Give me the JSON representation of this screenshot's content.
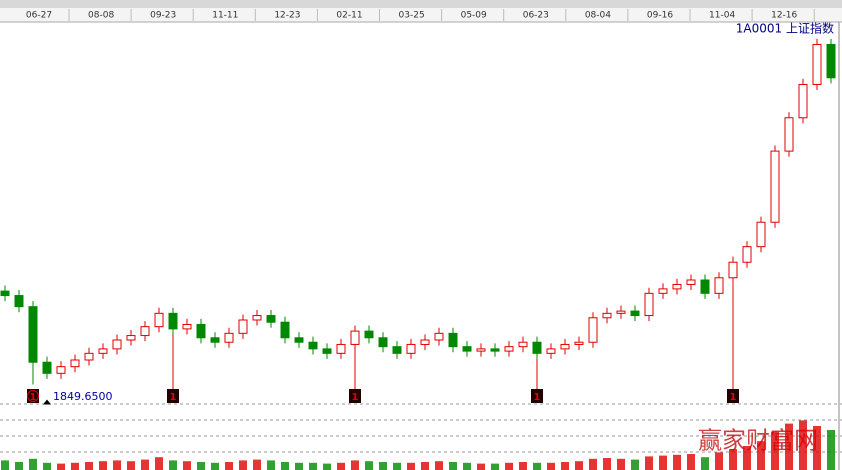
{
  "chart_data": {
    "type": "candlestick",
    "title": "1A0001 上证指数",
    "date_labels": [
      "06-27",
      "08-08",
      "09-23",
      "11-11",
      "12-23",
      "02-11",
      "03-25",
      "05-09",
      "06-23",
      "08-04",
      "09-16",
      "11-04",
      "12-16"
    ],
    "open": [
      2270,
      2250,
      2200,
      1950,
      1900,
      1930,
      1960,
      1990,
      2010,
      2050,
      2070,
      2110,
      2170,
      2100,
      2120,
      2060,
      2040,
      2080,
      2140,
      2160,
      2130,
      2060,
      2040,
      2010,
      1990,
      2030,
      2090,
      2060,
      2020,
      1990,
      2030,
      2050,
      2080,
      2020,
      2000,
      2010,
      2000,
      2020,
      2040,
      1990,
      2010,
      2030,
      2040,
      2150,
      2170,
      2180,
      2160,
      2260,
      2280,
      2300,
      2320,
      2260,
      2330,
      2400,
      2470,
      2580,
      2900,
      3050,
      3200,
      3380
    ],
    "close": [
      2250,
      2200,
      1950,
      1900,
      1930,
      1960,
      1990,
      2010,
      2050,
      2070,
      2110,
      2170,
      2100,
      2120,
      2060,
      2040,
      2080,
      2140,
      2160,
      2130,
      2060,
      2040,
      2010,
      1990,
      2030,
      2090,
      2060,
      2020,
      1990,
      2030,
      2050,
      2080,
      2020,
      2000,
      2010,
      2000,
      2020,
      2040,
      1990,
      2010,
      2030,
      2040,
      2150,
      2170,
      2180,
      2160,
      2260,
      2280,
      2300,
      2320,
      2260,
      2330,
      2400,
      2470,
      2580,
      2900,
      3050,
      3200,
      3380,
      3230
    ],
    "high": [
      2295,
      2275,
      2225,
      1975,
      1955,
      1985,
      2015,
      2035,
      2075,
      2095,
      2135,
      2195,
      2195,
      2145,
      2145,
      2085,
      2105,
      2165,
      2185,
      2185,
      2155,
      2085,
      2065,
      2035,
      2055,
      2115,
      2115,
      2085,
      2045,
      2055,
      2075,
      2105,
      2105,
      2045,
      2035,
      2035,
      2045,
      2065,
      2065,
      2035,
      2055,
      2065,
      2175,
      2195,
      2205,
      2205,
      2285,
      2305,
      2325,
      2345,
      2345,
      2355,
      2425,
      2495,
      2605,
      2925,
      3075,
      3225,
      3405,
      3405
    ],
    "low": [
      2225,
      2175,
      1849.65,
      1875,
      1875,
      1905,
      1935,
      1965,
      1985,
      2025,
      2045,
      2085,
      2075,
      2075,
      2035,
      2015,
      2015,
      2055,
      2115,
      2105,
      2035,
      2015,
      1985,
      1965,
      1965,
      2005,
      2035,
      1995,
      1965,
      1965,
      2005,
      2025,
      1995,
      1975,
      1975,
      1975,
      1975,
      1995,
      1965,
      1965,
      1985,
      2005,
      2015,
      2125,
      2145,
      2135,
      2135,
      2235,
      2255,
      2275,
      2235,
      2235,
      2305,
      2375,
      2445,
      2555,
      2875,
      3025,
      3175,
      3205
    ],
    "volume": [
      12,
      10,
      14,
      9,
      8,
      9,
      10,
      11,
      12,
      11,
      13,
      16,
      12,
      11,
      10,
      9,
      10,
      12,
      13,
      12,
      10,
      9,
      9,
      8,
      9,
      12,
      11,
      10,
      9,
      9,
      10,
      11,
      10,
      9,
      8,
      8,
      9,
      10,
      9,
      9,
      10,
      11,
      14,
      15,
      14,
      13,
      17,
      18,
      19,
      20,
      16,
      22,
      26,
      30,
      36,
      48,
      58,
      62,
      55,
      50
    ],
    "volume_lim": [
      0,
      100
    ],
    "ylim": [
      1780,
      3490
    ],
    "low_point": {
      "value": 1849.65,
      "label": "1849.6500"
    },
    "markers": [
      {
        "label": "1",
        "at": 2,
        "circled": true
      },
      {
        "label": "1",
        "at": 12
      },
      {
        "label": "1",
        "at": 25
      },
      {
        "label": "1",
        "at": 38
      },
      {
        "label": "1",
        "at": 52
      }
    ],
    "up_color": "#e00000",
    "down_color": "#008800",
    "watermark": "赢家财富网"
  }
}
